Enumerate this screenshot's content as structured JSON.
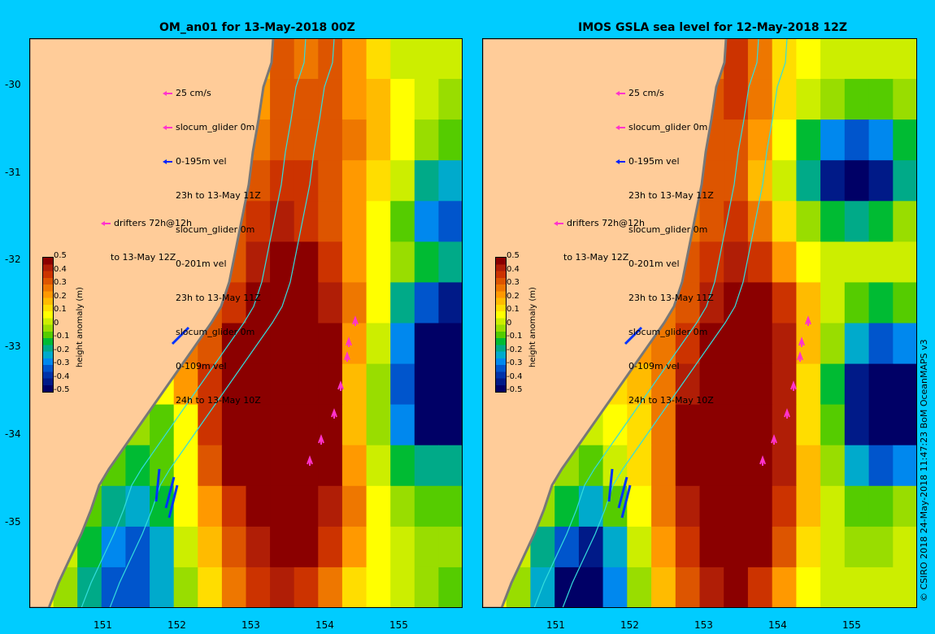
{
  "panels": [
    {
      "title": "OM_an01 for 13-May-2018 00Z",
      "cells": [
        {
          "r": 0,
          "v": [
            -0.5,
            -0.5,
            -0.5,
            -0.5,
            -0.5,
            -0.5,
            -0.5,
            -0.5,
            0.0,
            0.15,
            0.3,
            0.25,
            0.3,
            0.2,
            0.1,
            0.0,
            0.0,
            0.0
          ]
        },
        {
          "r": 1,
          "v": [
            -0.5,
            -0.5,
            -0.5,
            -0.5,
            -0.5,
            -0.5,
            -0.5,
            -0.5,
            0.1,
            0.2,
            0.3,
            0.3,
            0.3,
            0.2,
            0.15,
            0.05,
            0.0,
            -0.05
          ]
        },
        {
          "r": 2,
          "v": [
            -0.5,
            -0.5,
            -0.5,
            -0.5,
            -0.5,
            -0.5,
            -0.5,
            -0.5,
            0.15,
            0.25,
            0.3,
            0.3,
            0.3,
            0.25,
            0.15,
            0.05,
            -0.05,
            -0.1
          ]
        },
        {
          "r": 3,
          "v": [
            -0.5,
            -0.5,
            -0.5,
            -0.5,
            -0.5,
            -0.5,
            -0.5,
            0.2,
            0.25,
            0.3,
            0.35,
            0.35,
            0.3,
            0.2,
            0.1,
            0.0,
            -0.2,
            -0.25
          ]
        },
        {
          "r": 4,
          "v": [
            -0.5,
            -0.5,
            -0.5,
            -0.5,
            -0.5,
            -0.5,
            -0.5,
            0.25,
            0.3,
            0.35,
            0.4,
            0.35,
            0.3,
            0.2,
            0.05,
            -0.1,
            -0.3,
            -0.35
          ]
        },
        {
          "r": 5,
          "v": [
            -0.5,
            -0.5,
            -0.5,
            -0.5,
            -0.5,
            -0.5,
            0.2,
            0.25,
            0.3,
            0.4,
            0.45,
            0.45,
            0.35,
            0.2,
            0.05,
            -0.05,
            -0.15,
            -0.2
          ]
        },
        {
          "r": 6,
          "v": [
            -0.5,
            -0.5,
            -0.5,
            -0.5,
            -0.5,
            -0.5,
            0.2,
            0.3,
            0.35,
            0.45,
            0.5,
            0.5,
            0.4,
            0.25,
            0.05,
            -0.2,
            -0.35,
            -0.4
          ]
        },
        {
          "r": 7,
          "v": [
            -0.5,
            -0.5,
            -0.5,
            -0.5,
            -0.5,
            0.15,
            0.25,
            0.3,
            0.45,
            0.5,
            0.5,
            0.5,
            0.45,
            0.2,
            0.0,
            -0.3,
            -0.45,
            -0.5
          ]
        },
        {
          "r": 8,
          "v": [
            -0.5,
            -0.5,
            -0.5,
            0.2,
            0.1,
            0.05,
            0.2,
            0.35,
            0.5,
            0.5,
            0.5,
            0.5,
            0.45,
            0.15,
            -0.05,
            -0.35,
            -0.5,
            -0.5
          ]
        },
        {
          "r": 9,
          "v": [
            -0.5,
            -0.5,
            0.15,
            0.05,
            -0.05,
            -0.1,
            0.05,
            0.35,
            0.5,
            0.5,
            0.5,
            0.5,
            0.45,
            0.15,
            -0.05,
            -0.3,
            -0.45,
            -0.45
          ]
        },
        {
          "r": 10,
          "v": [
            -0.5,
            0.1,
            0.0,
            -0.1,
            -0.15,
            -0.1,
            0.05,
            0.3,
            0.45,
            0.5,
            0.5,
            0.5,
            0.45,
            0.2,
            0.0,
            -0.15,
            -0.2,
            -0.2
          ]
        },
        {
          "r": 11,
          "v": [
            -0.5,
            0.05,
            -0.1,
            -0.2,
            -0.25,
            -0.15,
            0.05,
            0.2,
            0.35,
            0.45,
            0.5,
            0.5,
            0.4,
            0.25,
            0.05,
            -0.05,
            -0.1,
            -0.1
          ]
        },
        {
          "r": 12,
          "v": [
            0.1,
            0.0,
            -0.15,
            -0.3,
            -0.35,
            -0.25,
            0.0,
            0.15,
            0.3,
            0.4,
            0.5,
            0.5,
            0.35,
            0.2,
            0.05,
            0.0,
            -0.05,
            -0.05
          ]
        },
        {
          "r": 13,
          "v": [
            0.05,
            -0.05,
            -0.2,
            -0.35,
            -0.35,
            -0.25,
            -0.05,
            0.1,
            0.25,
            0.35,
            0.4,
            0.35,
            0.25,
            0.1,
            0.05,
            0.0,
            -0.05,
            -0.1
          ]
        }
      ],
      "legend_lines": [
        "25 cm/s",
        "slocum_glider 0m",
        "0-195m vel",
        "23h to 13-May 11Z",
        "slocum_glider 0m",
        "0-201m vel",
        "23h to 13-May 11Z",
        "slocum_glider 0m",
        "0-109m vel",
        "24h to 13-May 10Z"
      ],
      "drifter_lines": [
        "drifters 72h@12h",
        "to 13-May 12Z"
      ]
    },
    {
      "title": "IMOS GSLA sea level  for 12-May-2018 12Z",
      "cells": [
        {
          "r": 0,
          "v": [
            -0.5,
            -0.5,
            -0.5,
            -0.5,
            -0.5,
            -0.5,
            -0.5,
            -0.5,
            0.1,
            0.25,
            0.35,
            0.25,
            0.1,
            0.05,
            0.0,
            0.0,
            0.0,
            0.0
          ]
        },
        {
          "r": 1,
          "v": [
            -0.5,
            -0.5,
            -0.5,
            -0.5,
            -0.5,
            -0.5,
            -0.5,
            -0.5,
            0.15,
            0.3,
            0.35,
            0.25,
            0.1,
            0.0,
            -0.05,
            -0.1,
            -0.1,
            -0.05
          ]
        },
        {
          "r": 2,
          "v": [
            -0.5,
            -0.5,
            -0.5,
            -0.5,
            -0.5,
            -0.5,
            -0.5,
            -0.5,
            0.2,
            0.3,
            0.3,
            0.2,
            0.05,
            -0.15,
            -0.3,
            -0.35,
            -0.3,
            -0.15
          ]
        },
        {
          "r": 3,
          "v": [
            -0.5,
            -0.5,
            -0.5,
            -0.5,
            -0.5,
            -0.5,
            -0.5,
            0.2,
            0.25,
            0.3,
            0.3,
            0.15,
            0.0,
            -0.2,
            -0.4,
            -0.45,
            -0.4,
            -0.2
          ]
        },
        {
          "r": 4,
          "v": [
            -0.5,
            -0.5,
            -0.5,
            -0.5,
            -0.5,
            -0.5,
            -0.5,
            0.2,
            0.25,
            0.3,
            0.35,
            0.25,
            0.1,
            -0.05,
            -0.15,
            -0.2,
            -0.15,
            -0.05
          ]
        },
        {
          "r": 5,
          "v": [
            -0.5,
            -0.5,
            -0.5,
            -0.5,
            -0.5,
            -0.5,
            0.15,
            0.2,
            0.3,
            0.35,
            0.4,
            0.35,
            0.2,
            0.05,
            0.0,
            0.0,
            0.0,
            0.0
          ]
        },
        {
          "r": 6,
          "v": [
            -0.5,
            -0.5,
            -0.5,
            -0.5,
            -0.5,
            -0.5,
            0.15,
            0.25,
            0.3,
            0.4,
            0.45,
            0.45,
            0.35,
            0.15,
            0.0,
            -0.1,
            -0.15,
            -0.1
          ]
        },
        {
          "r": 7,
          "v": [
            -0.5,
            -0.5,
            -0.5,
            -0.5,
            -0.5,
            0.15,
            0.2,
            0.25,
            0.35,
            0.5,
            0.5,
            0.5,
            0.4,
            0.15,
            -0.05,
            -0.25,
            -0.35,
            -0.3
          ]
        },
        {
          "r": 8,
          "v": [
            -0.5,
            -0.5,
            -0.5,
            0.15,
            0.1,
            0.1,
            0.15,
            0.25,
            0.4,
            0.5,
            0.5,
            0.5,
            0.4,
            0.1,
            -0.15,
            -0.4,
            -0.45,
            -0.45
          ]
        },
        {
          "r": 9,
          "v": [
            -0.5,
            -0.5,
            0.15,
            0.05,
            0.0,
            0.05,
            0.1,
            0.25,
            0.45,
            0.5,
            0.5,
            0.5,
            0.4,
            0.1,
            -0.1,
            -0.4,
            -0.5,
            -0.5
          ]
        },
        {
          "r": 10,
          "v": [
            -0.5,
            0.15,
            0.05,
            -0.05,
            -0.1,
            0.0,
            0.1,
            0.25,
            0.45,
            0.5,
            0.5,
            0.5,
            0.4,
            0.15,
            -0.05,
            -0.25,
            -0.35,
            -0.3
          ]
        },
        {
          "r": 11,
          "v": [
            -0.5,
            0.05,
            -0.05,
            -0.15,
            -0.25,
            -0.1,
            0.05,
            0.25,
            0.4,
            0.5,
            0.5,
            0.5,
            0.35,
            0.15,
            0.0,
            -0.1,
            -0.1,
            -0.05
          ]
        },
        {
          "r": 12,
          "v": [
            0.1,
            0.0,
            -0.2,
            -0.35,
            -0.4,
            -0.25,
            0.0,
            0.2,
            0.35,
            0.45,
            0.5,
            0.45,
            0.3,
            0.1,
            0.0,
            -0.05,
            -0.05,
            0.0
          ]
        },
        {
          "r": 13,
          "v": [
            0.05,
            -0.05,
            -0.25,
            -0.45,
            -0.45,
            -0.3,
            -0.05,
            0.15,
            0.3,
            0.4,
            0.45,
            0.35,
            0.2,
            0.05,
            0.0,
            0.0,
            0.0,
            0.0
          ]
        }
      ],
      "legend_lines": [
        "25 cm/s",
        "slocum_glider 0m",
        "0-195m vel",
        "23h to 13-May 11Z",
        "slocum_glider 0m",
        "0-201m vel",
        "23h to 13-May 11Z",
        "slocum_glider 0m",
        "0-109m vel",
        "24h to 13-May 10Z"
      ],
      "drifter_lines": [
        "drifters 72h@12h",
        "to 13-May 12Z"
      ]
    }
  ],
  "x_ticks": [
    "151",
    "152",
    "153",
    "154",
    "155"
  ],
  "y_ticks": [
    "-30",
    "-31",
    "-32",
    "-33",
    "-34",
    "-35"
  ],
  "colorbar": {
    "title": "height anomaly (m)",
    "labels": [
      "0.5",
      "0.4",
      "0.3",
      "0.2",
      "0.1",
      "0",
      "-0.1",
      "-0.2",
      "-0.3",
      "-0.4",
      "-0.5"
    ],
    "colors": [
      "#8b0000",
      "#b01e06",
      "#cc3300",
      "#dd5500",
      "#ee7700",
      "#ff9900",
      "#ffbb00",
      "#ffdd00",
      "#ffff00",
      "#ccee00",
      "#99dd00",
      "#55cc00",
      "#00bb33",
      "#00aa88",
      "#00aacc",
      "#0088ee",
      "#0055cc",
      "#0033aa",
      "#001a88",
      "#000066"
    ]
  },
  "credit": "© CSIRO 2018  24-May-2018 11:47:23 BoM OceanMAPS v3",
  "colors": {
    "background": "#00ccff",
    "land": "#ffcc99"
  }
}
